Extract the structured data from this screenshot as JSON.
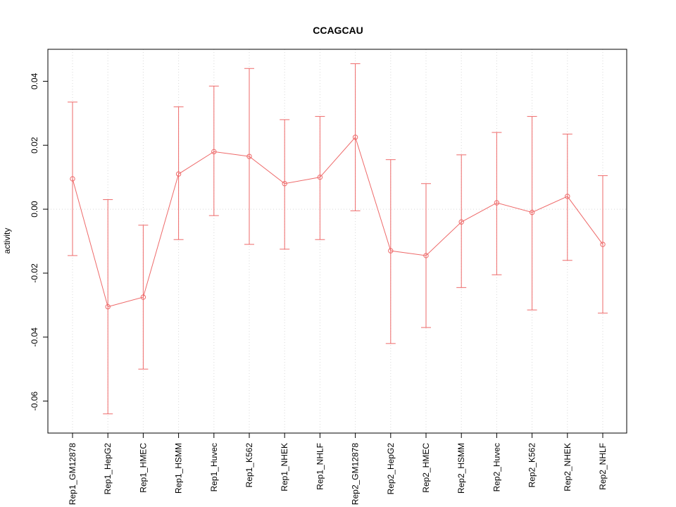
{
  "chart_data": {
    "type": "line",
    "title": "CCAGCAU",
    "xlabel": "",
    "ylabel": "activity",
    "categories": [
      "Rep1_GM12878",
      "Rep1_HepG2",
      "Rep1_HMEC",
      "Rep1_HSMM",
      "Rep1_Huvec",
      "Rep1_K562",
      "Rep1_NHEK",
      "Rep1_NHLF",
      "Rep2_GM12878",
      "Rep2_HepG2",
      "Rep2_HMEC",
      "Rep2_HSMM",
      "Rep2_Huvec",
      "Rep2_K562",
      "Rep2_NHEK",
      "Rep2_NHLF"
    ],
    "series": [
      {
        "name": "activity",
        "values": [
          0.0095,
          -0.0305,
          -0.0275,
          0.011,
          0.018,
          0.0165,
          0.008,
          0.01,
          0.0225,
          -0.013,
          -0.0145,
          -0.004,
          0.002,
          -0.001,
          0.004,
          -0.011
        ]
      }
    ],
    "error_upper": [
      0.0335,
      0.003,
      -0.005,
      0.032,
      0.0385,
      0.044,
      0.028,
      0.029,
      0.0455,
      0.0155,
      0.008,
      0.017,
      0.024,
      0.029,
      0.0235,
      0.0105
    ],
    "error_lower": [
      -0.0145,
      -0.064,
      -0.05,
      -0.0095,
      -0.002,
      -0.011,
      -0.0125,
      -0.0095,
      -0.0005,
      -0.042,
      -0.037,
      -0.0245,
      -0.0205,
      -0.0315,
      -0.016,
      -0.0325
    ],
    "yticks": [
      -0.06,
      -0.04,
      -0.02,
      0.0,
      0.02,
      0.04
    ],
    "ylim": [
      -0.07,
      0.05
    ],
    "grid": true,
    "zero_line": true,
    "legend_position": "none",
    "line_color": "#ee6a6a",
    "grid_color": "#d8d8d8",
    "axis_color": "#000000"
  }
}
